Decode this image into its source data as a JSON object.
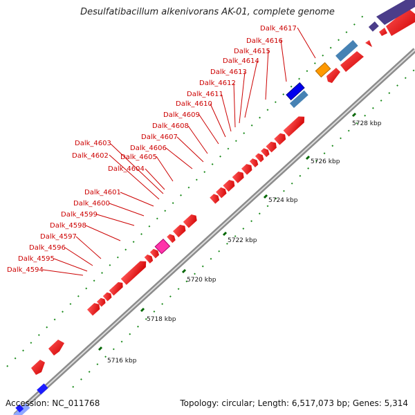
{
  "title": "Desulfatibacillum alkenivorans AK-01, complete genome",
  "accession": "Accession: NC_011768",
  "summary": "Topology: circular; Length: 6,517,073 bp; Genes: 5,314",
  "colors": {
    "forward_gene": "#ff0000",
    "reverse_gene": "#ff0000",
    "highlight_pink": "#ff33aa",
    "orange": "#ff9900",
    "steel_blue": "#4682b4",
    "blue": "#0000ff",
    "purple": "#4b3d8a",
    "label_text": "#cc0000",
    "ticks": "#006600"
  },
  "scale_labels": [
    "5716 kbp",
    "5718 kbp",
    "5720 kbp",
    "5722 kbp",
    "5724 kbp",
    "5726 kbp",
    "5728 kbp"
  ],
  "gene_labels": [
    "Dalk_4594",
    "Dalk_4595",
    "Dalk_4596",
    "Dalk_4597",
    "Dalk_4598",
    "Dalk_4599",
    "Dalk_4600",
    "Dalk_4601",
    "Dalk_4602",
    "Dalk_4603",
    "Dalk_4604",
    "Dalk_4605",
    "Dalk_4606",
    "Dalk_4607",
    "Dalk_4608",
    "Dalk_4609",
    "Dalk_4610",
    "Dalk_4611",
    "Dalk_4612",
    "Dalk_4613",
    "Dalk_4614",
    "Dalk_4615",
    "Dalk_4616",
    "Dalk_4617"
  ]
}
